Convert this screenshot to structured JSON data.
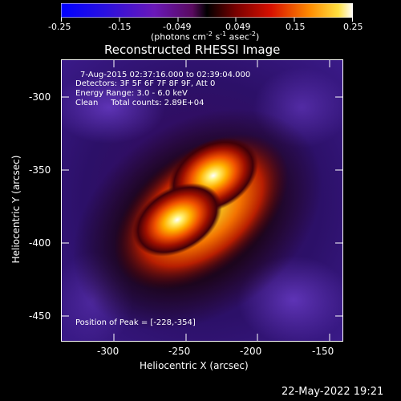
{
  "colorbar": {
    "ticks": [
      "-0.25",
      "-0.15",
      "-0.049",
      "0.049",
      "0.15",
      "0.25"
    ],
    "units_label": "(photons cm",
    "units_sup1": "-2",
    "units_mid": " s",
    "units_sup2": "-1",
    "units_end": " asec",
    "units_sup3": "-2",
    "units_close": ")"
  },
  "plot": {
    "title": "Reconstructed RHESSI Image",
    "xlabel": "Heliocentric X (arcsec)",
    "ylabel": "Heliocentric Y (arcsec)",
    "xticks": [
      "-300",
      "-250",
      "-200",
      "-150"
    ],
    "yticks": [
      "-300",
      "-350",
      "-400",
      "-450"
    ],
    "info_lines": [
      "7-Aug-2015 02:37:16.000 to 02:39:04.000",
      "Detectors: 3F 5F 6F 7F 8F 9F, Att 0",
      "Energy Range: 3.0 - 6.0 keV",
      "Clean     Total counts: 2.89E+04"
    ],
    "peak_text": "Position of Peak = [-228,-354]"
  },
  "footer": {
    "timestamp": "22-May-2022 19:21"
  }
}
